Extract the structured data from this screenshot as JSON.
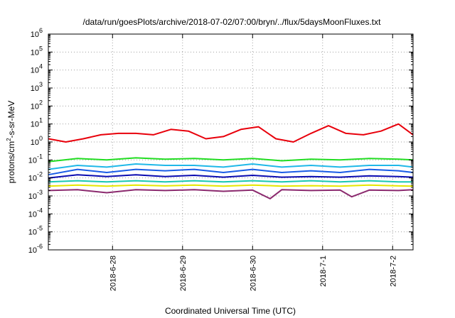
{
  "chart_data": {
    "type": "line",
    "title": "/data/run/goesPlots/archive/2018-07-02/07:00/bryn/../flux/5daysMoonFluxes.txt",
    "xlabel": "Coordinated Universal Time (UTC)",
    "ylabel_main": "protons/cm",
    "ylabel_sup": "2",
    "ylabel_rest": "-s-sr-MeV",
    "xlim": [
      "2018-06-27T02:00",
      "2018-07-02T07:00"
    ],
    "ylim": [
      1e-06,
      1000000.0
    ],
    "yscale": "log",
    "grid": true,
    "x_ticks": [
      {
        "label": "2018-6-28",
        "value": "2018-06-28T00:00"
      },
      {
        "label": "2018-6-29",
        "value": "2018-06-29T00:00"
      },
      {
        "label": "2018-6-30",
        "value": "2018-06-30T00:00"
      },
      {
        "label": "2018-7-1",
        "value": "2018-07-01T00:00"
      },
      {
        "label": "2018-7-2",
        "value": "2018-07-02T00:00"
      }
    ],
    "y_ticks": [
      {
        "base": "10",
        "exp": "6",
        "value": 1000000.0
      },
      {
        "base": "10",
        "exp": "5",
        "value": 100000.0
      },
      {
        "base": "10",
        "exp": "4",
        "value": 10000.0
      },
      {
        "base": "10",
        "exp": "3",
        "value": 1000.0
      },
      {
        "base": "10",
        "exp": "2",
        "value": 100.0
      },
      {
        "base": "10",
        "exp": "1",
        "value": 10.0
      },
      {
        "base": "10",
        "exp": "0",
        "value": 1.0
      },
      {
        "base": "10",
        "exp": "-1",
        "value": 0.1
      },
      {
        "base": "10",
        "exp": "-2",
        "value": 0.01
      },
      {
        "base": "10",
        "exp": "-3",
        "value": 0.001
      },
      {
        "base": "10",
        "exp": "-4",
        "value": 0.0001
      },
      {
        "base": "10",
        "exp": "-5",
        "value": 1e-05
      },
      {
        "base": "10",
        "exp": "-6",
        "value": 1e-06
      }
    ],
    "series": [
      {
        "color": "#e8000b",
        "x": [
          "2018-06-27T02:00",
          "2018-06-27T08:00",
          "2018-06-27T14:00",
          "2018-06-27T20:00",
          "2018-06-28T02:00",
          "2018-06-28T08:00",
          "2018-06-28T14:00",
          "2018-06-28T20:00",
          "2018-06-29T02:00",
          "2018-06-29T08:00",
          "2018-06-29T14:00",
          "2018-06-29T20:00",
          "2018-06-30T02:00",
          "2018-06-30T08:00",
          "2018-06-30T14:00",
          "2018-06-30T20:00",
          "2018-07-01T02:00",
          "2018-07-01T08:00",
          "2018-07-01T14:00",
          "2018-07-01T20:00",
          "2018-07-02T02:00",
          "2018-07-02T07:00"
        ],
        "y": [
          1.5,
          1.0,
          1.5,
          2.5,
          3.0,
          3.0,
          2.5,
          5.0,
          4.0,
          1.5,
          2.0,
          5.0,
          7.0,
          1.5,
          1.0,
          3.0,
          8.0,
          3.0,
          2.5,
          4.0,
          10.0,
          2.5
        ]
      },
      {
        "color": "#22dd22",
        "x": [
          "2018-06-27T02:00",
          "2018-06-27T12:00",
          "2018-06-27T22:00",
          "2018-06-28T08:00",
          "2018-06-28T18:00",
          "2018-06-29T04:00",
          "2018-06-29T14:00",
          "2018-06-30T00:00",
          "2018-06-30T10:00",
          "2018-06-30T20:00",
          "2018-07-01T06:00",
          "2018-07-01T16:00",
          "2018-07-02T02:00",
          "2018-07-02T07:00"
        ],
        "y": [
          0.08,
          0.12,
          0.1,
          0.13,
          0.11,
          0.12,
          0.1,
          0.12,
          0.09,
          0.11,
          0.1,
          0.12,
          0.11,
          0.1
        ]
      },
      {
        "color": "#1fb8e8",
        "x": [
          "2018-06-27T02:00",
          "2018-06-27T12:00",
          "2018-06-27T22:00",
          "2018-06-28T08:00",
          "2018-06-28T18:00",
          "2018-06-29T04:00",
          "2018-06-29T14:00",
          "2018-06-30T00:00",
          "2018-06-30T10:00",
          "2018-06-30T20:00",
          "2018-07-01T06:00",
          "2018-07-01T16:00",
          "2018-07-02T02:00",
          "2018-07-02T07:00"
        ],
        "y": [
          0.03,
          0.05,
          0.04,
          0.06,
          0.05,
          0.05,
          0.04,
          0.06,
          0.04,
          0.05,
          0.04,
          0.05,
          0.05,
          0.04
        ]
      },
      {
        "color": "#1a5ce6",
        "x": [
          "2018-06-27T02:00",
          "2018-06-27T12:00",
          "2018-06-27T22:00",
          "2018-06-28T08:00",
          "2018-06-28T18:00",
          "2018-06-29T04:00",
          "2018-06-29T14:00",
          "2018-06-30T00:00",
          "2018-06-30T10:00",
          "2018-06-30T20:00",
          "2018-07-01T06:00",
          "2018-07-01T16:00",
          "2018-07-02T02:00",
          "2018-07-02T07:00"
        ],
        "y": [
          0.015,
          0.03,
          0.02,
          0.03,
          0.025,
          0.03,
          0.02,
          0.03,
          0.02,
          0.025,
          0.02,
          0.03,
          0.025,
          0.02
        ]
      },
      {
        "color": "#0a0ab0",
        "x": [
          "2018-06-27T02:00",
          "2018-06-27T12:00",
          "2018-06-27T22:00",
          "2018-06-28T08:00",
          "2018-06-28T18:00",
          "2018-06-29T04:00",
          "2018-06-29T14:00",
          "2018-06-30T00:00",
          "2018-06-30T10:00",
          "2018-06-30T20:00",
          "2018-07-01T06:00",
          "2018-07-01T16:00",
          "2018-07-02T02:00",
          "2018-07-02T07:00"
        ],
        "y": [
          0.01,
          0.015,
          0.012,
          0.015,
          0.012,
          0.014,
          0.011,
          0.014,
          0.011,
          0.012,
          0.011,
          0.013,
          0.012,
          0.011
        ]
      },
      {
        "color": "#18c8b0",
        "x": [
          "2018-06-27T02:00",
          "2018-06-27T12:00",
          "2018-06-27T22:00",
          "2018-06-28T08:00",
          "2018-06-28T18:00",
          "2018-06-29T04:00",
          "2018-06-29T14:00",
          "2018-06-30T00:00",
          "2018-06-30T10:00",
          "2018-06-30T20:00",
          "2018-07-01T06:00",
          "2018-07-01T16:00",
          "2018-07-02T02:00",
          "2018-07-02T07:00"
        ],
        "y": [
          0.006,
          0.007,
          0.006,
          0.007,
          0.006,
          0.007,
          0.006,
          0.007,
          0.006,
          0.007,
          0.006,
          0.007,
          0.006,
          0.006
        ]
      },
      {
        "color": "#e6e600",
        "x": [
          "2018-06-27T02:00",
          "2018-06-27T12:00",
          "2018-06-27T22:00",
          "2018-06-28T08:00",
          "2018-06-28T18:00",
          "2018-06-29T04:00",
          "2018-06-29T14:00",
          "2018-06-30T00:00",
          "2018-06-30T10:00",
          "2018-06-30T20:00",
          "2018-07-01T06:00",
          "2018-07-01T16:00",
          "2018-07-02T02:00",
          "2018-07-02T07:00"
        ],
        "y": [
          0.0035,
          0.004,
          0.0035,
          0.004,
          0.0036,
          0.004,
          0.0035,
          0.004,
          0.0035,
          0.0037,
          0.0035,
          0.004,
          0.0036,
          0.0035
        ]
      },
      {
        "color": "#8b2a6e",
        "x": [
          "2018-06-27T02:00",
          "2018-06-27T12:00",
          "2018-06-27T22:00",
          "2018-06-28T08:00",
          "2018-06-28T18:00",
          "2018-06-29T04:00",
          "2018-06-29T14:00",
          "2018-06-30T00:00",
          "2018-06-30T06:00",
          "2018-06-30T10:00",
          "2018-06-30T20:00",
          "2018-07-01T06:00",
          "2018-07-01T10:00",
          "2018-07-01T16:00",
          "2018-07-02T02:00",
          "2018-07-02T07:00"
        ],
        "y": [
          0.002,
          0.0022,
          0.0015,
          0.0022,
          0.002,
          0.0022,
          0.0018,
          0.0021,
          0.0007,
          0.0022,
          0.002,
          0.0021,
          0.0009,
          0.0021,
          0.002,
          0.0022
        ]
      }
    ]
  }
}
